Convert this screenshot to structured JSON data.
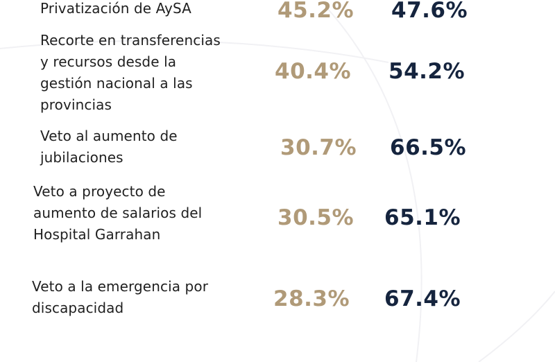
{
  "colors": {
    "approve": "#b09a78",
    "disapprove": "#15243e",
    "text": "#1f1f1f"
  },
  "rows": [
    {
      "lines": [
        "Privatización de AySA"
      ],
      "approve": "45.2%",
      "disapprove": "47.6%"
    },
    {
      "lines": [
        "Recorte en transferencias",
        "y recursos desde la",
        "gestión nacional a las",
        "provincias"
      ],
      "approve": "40.4%",
      "disapprove": "54.2%"
    },
    {
      "lines": [
        "Veto al aumento de",
        "jubilaciones"
      ],
      "approve": "30.7%",
      "disapprove": "66.5%"
    },
    {
      "lines": [
        "Veto a proyecto de",
        "aumento de salarios del",
        "Hospital Garrahan"
      ],
      "approve": "30.5%",
      "disapprove": "65.1%"
    },
    {
      "lines": [
        "Veto a la emergencia por",
        "discapacidad"
      ],
      "approve": "28.3%",
      "disapprove": "67.4%"
    }
  ]
}
